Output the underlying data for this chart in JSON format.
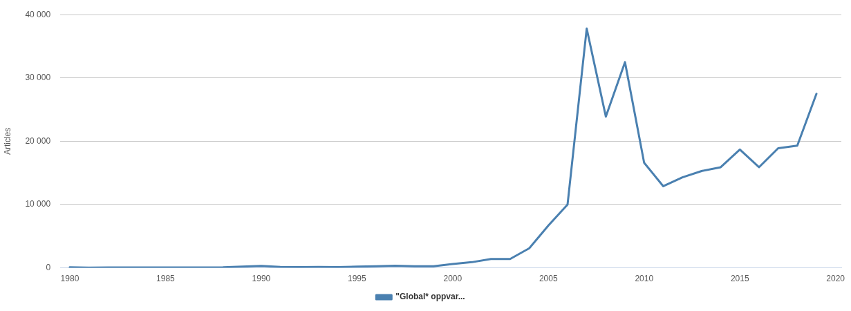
{
  "chart_data": {
    "type": "line",
    "ylabel": "Articles",
    "x": [
      1980,
      1981,
      1982,
      1983,
      1984,
      1985,
      1986,
      1987,
      1988,
      1989,
      1990,
      1991,
      1992,
      1993,
      1994,
      1995,
      1996,
      1997,
      1998,
      1999,
      2000,
      2001,
      2002,
      2003,
      2004,
      2005,
      2006,
      2007,
      2008,
      2009,
      2010,
      2011,
      2012,
      2013,
      2014,
      2015,
      2016,
      2017,
      2018,
      2019
    ],
    "series": [
      {
        "name": "\"Global* oppvar...",
        "color": "#4a80b0",
        "values": [
          100,
          30,
          60,
          60,
          60,
          60,
          60,
          60,
          80,
          200,
          300,
          150,
          120,
          150,
          120,
          200,
          250,
          350,
          250,
          250,
          600,
          900,
          1400,
          1400,
          3100,
          6700,
          10000,
          37800,
          23900,
          32500,
          16600,
          12900,
          14300,
          15300,
          15900,
          18700,
          15900,
          18900,
          19300,
          27500
        ]
      }
    ],
    "xlim": [
      1979.5,
      2020.3
    ],
    "xticks": [
      1980,
      1985,
      1990,
      1995,
      2000,
      2005,
      2010,
      2015,
      2020
    ],
    "ylim": [
      0,
      40000
    ],
    "yticks": [
      {
        "value": 0,
        "label": "0"
      },
      {
        "value": 10000,
        "label": "10 000"
      },
      {
        "value": 20000,
        "label": "20 000"
      },
      {
        "value": 30000,
        "label": "30 000"
      },
      {
        "value": 40000,
        "label": "40 000"
      }
    ],
    "grid": "y",
    "legend": "bottom",
    "marker": "none",
    "line_style": "solid"
  }
}
